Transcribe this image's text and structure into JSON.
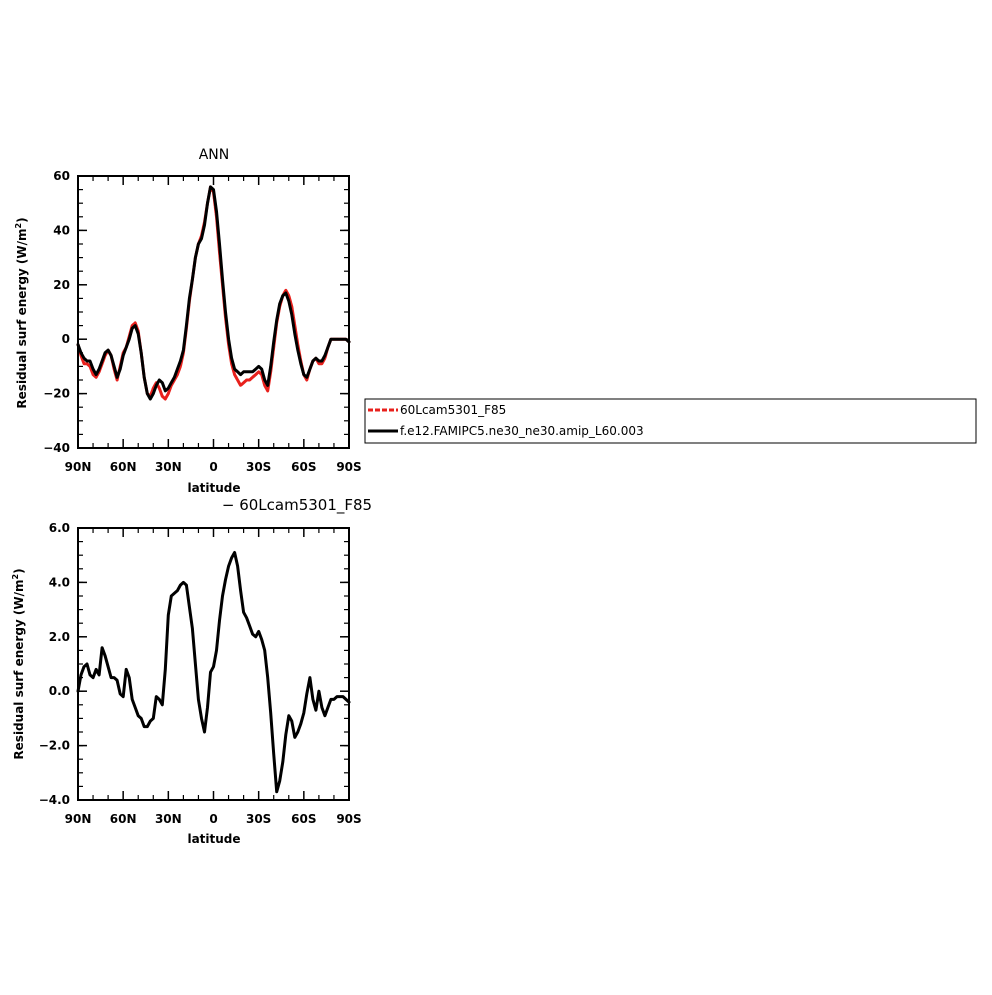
{
  "chart_data": [
    {
      "type": "line",
      "title": "ANN",
      "xlabel": "latitude",
      "ylabel": "Residual surf energy (W/m",
      "ylabel_sup": "2",
      "ylabel_close": ")",
      "xlim": [
        90,
        -90
      ],
      "ylim": [
        -40,
        60
      ],
      "x_tick_values": [
        90,
        60,
        30,
        0,
        -30,
        -60,
        -90
      ],
      "x_tick_labels": [
        "90N",
        "60N",
        "30N",
        "0",
        "30S",
        "60S",
        "90S"
      ],
      "y_tick_values": [
        -40,
        -20,
        0,
        20,
        40,
        60
      ],
      "y_tick_labels": [
        "−40",
        "−20",
        "0",
        "20",
        "40",
        "60"
      ],
      "x": [
        90,
        88,
        86,
        84,
        82,
        80,
        78,
        76,
        74,
        72,
        70,
        68,
        66,
        64,
        62,
        60,
        58,
        56,
        54,
        52,
        50,
        48,
        46,
        44,
        42,
        40,
        38,
        36,
        34,
        32,
        30,
        28,
        26,
        24,
        22,
        20,
        18,
        16,
        14,
        12,
        10,
        8,
        6,
        4,
        2,
        0,
        -2,
        -4,
        -6,
        -8,
        -10,
        -12,
        -14,
        -16,
        -18,
        -20,
        -22,
        -24,
        -26,
        -28,
        -30,
        -32,
        -34,
        -36,
        -38,
        -40,
        -42,
        -44,
        -46,
        -48,
        -50,
        -52,
        -54,
        -56,
        -58,
        -60,
        -62,
        -64,
        -66,
        -68,
        -70,
        -72,
        -74,
        -76,
        -78,
        -80,
        -82,
        -84,
        -86,
        -88,
        -90
      ],
      "series": [
        {
          "name": "60Lcam5301_F85",
          "color": "#e8201c",
          "dashed": true,
          "values": [
            -2,
            -6,
            -9,
            -9,
            -10,
            -13,
            -14,
            -12,
            -9,
            -6,
            -4,
            -6,
            -11,
            -15,
            -10,
            -5,
            -3,
            1,
            5,
            6,
            3,
            -5,
            -14,
            -20,
            -21,
            -18,
            -16,
            -18,
            -21,
            -22,
            -20,
            -17,
            -15,
            -13,
            -10,
            -5,
            4,
            14,
            22,
            30,
            35,
            38,
            43,
            50,
            56,
            54,
            45,
            32,
            20,
            8,
            -2,
            -9,
            -13,
            -15,
            -17,
            -16,
            -15,
            -15,
            -14,
            -13,
            -12,
            -13,
            -17,
            -19,
            -12,
            -3,
            6,
            12,
            16,
            18,
            16,
            12,
            5,
            -2,
            -8,
            -13,
            -15,
            -11,
            -8,
            -7,
            -9,
            -9,
            -7,
            -3,
            0,
            0,
            0,
            0,
            0,
            0,
            -1
          ]
        },
        {
          "name": "f.e12.FAMIPC5.ne30_ne30.amip_L60.003",
          "color": "#000000",
          "dashed": false,
          "values": [
            -2,
            -5,
            -7,
            -8,
            -8,
            -11,
            -13,
            -11,
            -8,
            -5,
            -4,
            -6,
            -10,
            -14,
            -11,
            -6,
            -3,
            0,
            4,
            5,
            2,
            -5,
            -14,
            -20,
            -22,
            -20,
            -17,
            -15,
            -16,
            -19,
            -18,
            -16,
            -14,
            -11,
            -8,
            -4,
            5,
            15,
            22,
            30,
            35,
            37,
            42,
            50,
            56,
            55,
            47,
            35,
            22,
            10,
            0,
            -7,
            -11,
            -12,
            -13,
            -12,
            -12,
            -12,
            -12,
            -11,
            -10,
            -11,
            -15,
            -17,
            -10,
            -1,
            7,
            13,
            16,
            17,
            14,
            9,
            2,
            -4,
            -9,
            -13,
            -14,
            -11,
            -8,
            -7,
            -8,
            -8,
            -6,
            -3,
            0,
            0,
            0,
            0,
            0,
            0,
            -1
          ]
        }
      ]
    },
    {
      "type": "line",
      "title": "− 60Lcam5301_F85",
      "xlabel": "latitude",
      "ylabel": "Residual surf energy (W/m",
      "ylabel_sup": "2",
      "ylabel_close": ")",
      "xlim": [
        90,
        -90
      ],
      "ylim": [
        -4,
        6
      ],
      "x_tick_values": [
        90,
        60,
        30,
        0,
        -30,
        -60,
        -90
      ],
      "x_tick_labels": [
        "90N",
        "60N",
        "30N",
        "0",
        "30S",
        "60S",
        "90S"
      ],
      "y_tick_values": [
        -4,
        -2,
        0,
        2,
        4,
        6
      ],
      "y_tick_labels": [
        "−4.0",
        "−2.0",
        "0.0",
        "2.0",
        "4.0",
        "6.0"
      ],
      "x": [
        90,
        88,
        86,
        84,
        82,
        80,
        78,
        76,
        74,
        72,
        70,
        68,
        66,
        64,
        62,
        60,
        58,
        56,
        54,
        52,
        50,
        48,
        46,
        44,
        42,
        40,
        38,
        36,
        34,
        32,
        30,
        28,
        26,
        24,
        22,
        20,
        18,
        16,
        14,
        12,
        10,
        8,
        6,
        4,
        2,
        0,
        -2,
        -4,
        -6,
        -8,
        -10,
        -12,
        -14,
        -16,
        -18,
        -20,
        -22,
        -24,
        -26,
        -28,
        -30,
        -32,
        -34,
        -36,
        -38,
        -40,
        -42,
        -44,
        -46,
        -48,
        -50,
        -52,
        -54,
        -56,
        -58,
        -60,
        -62,
        -64,
        -66,
        -68,
        -70,
        -72,
        -74,
        -76,
        -78,
        -80,
        -82,
        -84,
        -86,
        -88,
        -90
      ],
      "series": [
        {
          "name": "",
          "color": "#000000",
          "dashed": false,
          "values": [
            0,
            0.6,
            0.9,
            1.0,
            0.6,
            0.5,
            0.8,
            0.6,
            1.6,
            1.3,
            0.9,
            0.5,
            0.5,
            0.4,
            -0.1,
            -0.2,
            0.8,
            0.5,
            -0.3,
            -0.6,
            -0.9,
            -1.0,
            -1.3,
            -1.3,
            -1.1,
            -1.0,
            -0.2,
            -0.3,
            -0.5,
            0.8,
            2.8,
            3.5,
            3.6,
            3.7,
            3.9,
            4.0,
            3.9,
            3.1,
            2.3,
            1.0,
            -0.3,
            -1.0,
            -1.5,
            -0.6,
            0.7,
            0.9,
            1.5,
            2.6,
            3.5,
            4.1,
            4.6,
            4.9,
            5.1,
            4.6,
            3.7,
            2.9,
            2.7,
            2.4,
            2.1,
            2.0,
            2.2,
            1.9,
            1.5,
            0.5,
            -0.8,
            -2.3,
            -3.7,
            -3.3,
            -2.6,
            -1.6,
            -0.9,
            -1.1,
            -1.7,
            -1.5,
            -1.2,
            -0.8,
            -0.1,
            0.5,
            -0.3,
            -0.7,
            0.0,
            -0.6,
            -0.9,
            -0.6,
            -0.3,
            -0.3,
            -0.2,
            -0.2,
            -0.2,
            -0.3,
            -0.4
          ]
        }
      ]
    }
  ],
  "legend": {
    "items": [
      {
        "label": "60Lcam5301_F85",
        "color": "#e8201c",
        "dashed": true
      },
      {
        "label": "f.e12.FAMIPC5.ne30_ne30.amip_L60.003",
        "color": "#000000",
        "dashed": false
      }
    ]
  }
}
